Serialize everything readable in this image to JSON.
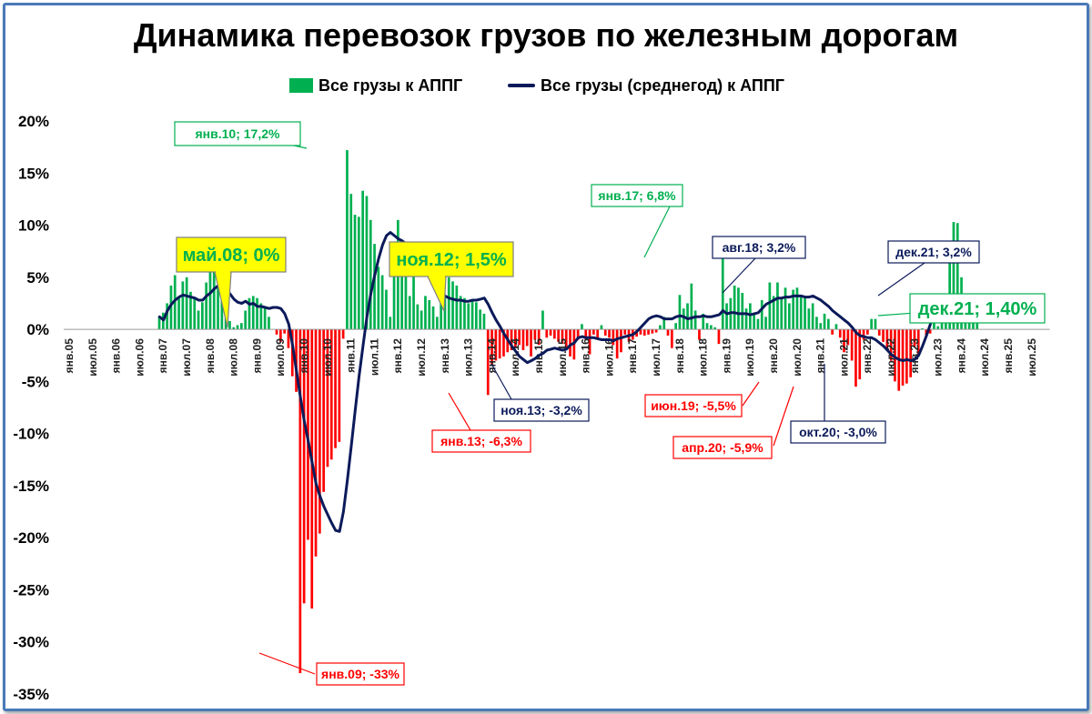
{
  "title": "Динамика перевозок грузов по железным дорогам",
  "legend": {
    "bars_label": "Все грузы к АППГ",
    "line_label": "Все грузы (среднегод) к АППГ"
  },
  "colors": {
    "positive_bar": "#00b050",
    "negative_bar": "#ff0000",
    "line": "#0b1a5a",
    "green_box_border": "#00b050",
    "green_box_text": "#00b050",
    "red_box_text": "#ff0000",
    "navy_box_text": "#0b1a5a",
    "yellow_fill": "#ffff00",
    "big_green_text": "#00b050"
  },
  "chart_data": {
    "type": "bar+line",
    "title": "Динамика перевозок грузов по железным дорогам",
    "ylim": [
      -35,
      20
    ],
    "y_ticks": [
      "20%",
      "15%",
      "10%",
      "5%",
      "0%",
      "-5%",
      "-10%",
      "-15%",
      "-20%",
      "-25%",
      "-30%",
      "-35%"
    ],
    "x_ticks": [
      "янв.05",
      "июл.05",
      "янв.06",
      "июл.06",
      "янв.07",
      "июл.07",
      "янв.08",
      "июл.08",
      "янв.09",
      "июл.09",
      "янв.10",
      "июл.10",
      "янв.11",
      "июл.11",
      "янв.12",
      "июл.12",
      "янв.13",
      "июл.13",
      "янв.14",
      "июл.14",
      "янв.15",
      "июл.15",
      "янв.16",
      "июл.16",
      "янв.17",
      "июл.17",
      "янв.18",
      "июл.18",
      "янв.19",
      "июл.19",
      "янв.20",
      "июл.20",
      "янв.21",
      "июл.21",
      "янв.22",
      "июл.22",
      "янв.23",
      "июл.23",
      "янв.24",
      "июл.24",
      "янв.25",
      "июл.25"
    ],
    "start_month": "янв.05",
    "series": [
      {
        "name": "Все грузы к АППГ",
        "kind": "bar",
        "values": [
          null,
          null,
          null,
          null,
          null,
          null,
          null,
          null,
          null,
          null,
          null,
          null,
          null,
          null,
          null,
          null,
          null,
          null,
          null,
          null,
          null,
          null,
          null,
          null,
          1.2,
          1.6,
          2.5,
          4.2,
          5.2,
          3.1,
          4.6,
          5.0,
          3.6,
          3.0,
          1.8,
          2.6,
          4.5,
          8.8,
          6.1,
          4.0,
          3.8,
          2.5,
          0.8,
          0.2,
          0.4,
          0.6,
          1.8,
          3.0,
          3.2,
          3.0,
          2.5,
          2.0,
          1.2,
          0.0,
          -0.5,
          -1.2,
          -0.4,
          -1.8,
          -4.5,
          -6.0,
          -33.0,
          -26.3,
          -20.2,
          -26.8,
          -21.8,
          -19.6,
          -15.6,
          -13.2,
          -12.5,
          -11.4,
          -10.8,
          -0.9,
          17.2,
          13.0,
          11.0,
          10.8,
          13.3,
          12.8,
          10.5,
          8.2,
          6.0,
          5.2,
          3.8,
          1.2,
          5.5,
          10.5,
          7.2,
          6.0,
          3.2,
          5.2,
          2.4,
          1.8,
          3.2,
          2.8,
          2.2,
          1.2,
          2.8,
          3.2,
          5.0,
          4.6,
          4.2,
          3.2,
          3.0,
          2.5,
          2.8,
          2.6,
          1.9,
          1.5,
          -6.3,
          -3.5,
          -3.0,
          -2.8,
          -2.6,
          -2.2,
          -2.0,
          -1.8,
          -1.5,
          -2.0,
          -1.6,
          -2.6,
          -1.0,
          -1.5,
          1.8,
          -0.8,
          -0.6,
          -0.9,
          -1.2,
          -1.4,
          -1.9,
          -2.6,
          -2.9,
          -1.0,
          0.5,
          -1.0,
          -2.4,
          -0.5,
          -0.8,
          0.4,
          -0.6,
          -0.8,
          -1.5,
          -2.8,
          -2.2,
          -0.5,
          -1.2,
          -1.0,
          -0.7,
          -0.5,
          -0.6,
          -0.5,
          -0.4,
          -0.3,
          0.4,
          1.2,
          -0.6,
          -1.8,
          0.6,
          3.3,
          2.0,
          2.5,
          4.4,
          1.8,
          -1.0,
          1.5,
          0.6,
          0.4,
          0.2,
          -1.4,
          6.8,
          2.5,
          3.0,
          4.2,
          4.0,
          3.5,
          2.0,
          2.5,
          1.5,
          1.0,
          2.8,
          1.2,
          4.5,
          3.2,
          4.5,
          3.0,
          4.0,
          2.5,
          3.8,
          4.0,
          3.2,
          3.0,
          2.0,
          2.5,
          1.2,
          0.6,
          1.5,
          1.0,
          -0.5,
          0.5,
          -0.8,
          -2.2,
          -1.5,
          -3.0,
          -5.5,
          -4.8,
          -1.0,
          -0.5,
          1.0,
          1.0,
          -0.6,
          -1.2,
          -1.8,
          -3.0,
          -5.0,
          -5.9,
          -5.4,
          -5.2,
          -4.6,
          -1.7,
          -2.5,
          0.1,
          -0.6,
          -0.4,
          0.8,
          0.3,
          0.8,
          2.2,
          7.0,
          10.3,
          10.2,
          5.0,
          3.0,
          2.0,
          0.6,
          1.4
        ]
      },
      {
        "name": "Все грузы (среднегод) к АППГ",
        "kind": "line",
        "values": [
          null,
          null,
          null,
          null,
          null,
          null,
          null,
          null,
          null,
          null,
          null,
          null,
          null,
          null,
          null,
          null,
          null,
          null,
          null,
          null,
          null,
          null,
          null,
          null,
          1.2,
          0.9,
          1.8,
          2.4,
          2.8,
          3.1,
          3.3,
          3.2,
          3.1,
          3.0,
          2.8,
          2.8,
          3.2,
          3.5,
          3.9,
          4.2,
          4.1,
          3.8,
          3.4,
          2.9,
          2.6,
          2.5,
          2.7,
          2.4,
          2.5,
          2.2,
          2.2,
          2.1,
          2.0,
          2.1,
          2.1,
          2.0,
          1.5,
          0.5,
          -1.5,
          -4.0,
          -6.5,
          -8.8,
          -10.7,
          -12.8,
          -14.8,
          -16.0,
          -17.0,
          -17.8,
          -18.6,
          -19.3,
          -19.4,
          -17.5,
          -14.5,
          -11.2,
          -7.8,
          -4.5,
          -1.6,
          1.2,
          3.4,
          5.2,
          6.8,
          8.1,
          9.0,
          9.3,
          9.0,
          8.7,
          8.5,
          8.2,
          7.8,
          7.2,
          6.6,
          6.0,
          5.6,
          5.0,
          4.5,
          4.0,
          3.6,
          3.2,
          3.0,
          2.9,
          2.8,
          2.8,
          2.7,
          2.7,
          2.8,
          2.8,
          2.9,
          3.0,
          2.4,
          1.6,
          0.9,
          0.3,
          -0.4,
          -1.0,
          -1.6,
          -2.1,
          -2.6,
          -2.9,
          -3.2,
          -3.0,
          -2.8,
          -2.5,
          -2.3,
          -2.0,
          -1.9,
          -1.8,
          -1.9,
          -2.0,
          -1.9,
          -1.5,
          -1.3,
          -0.8,
          -0.7,
          -0.8,
          -0.8,
          -0.8,
          -0.9,
          -1.0,
          -1.0,
          -1.0,
          -1.1,
          -0.9,
          -0.8,
          -0.7,
          -0.6,
          -0.5,
          -0.2,
          0.2,
          0.6,
          1.0,
          1.2,
          1.3,
          1.2,
          1.0,
          1.0,
          1.0,
          1.2,
          1.3,
          1.2,
          1.0,
          1.1,
          1.2,
          1.2,
          1.3,
          1.2,
          1.2,
          1.3,
          1.4,
          1.8,
          1.5,
          1.6,
          1.6,
          1.5,
          1.5,
          1.5,
          1.4,
          1.5,
          1.6,
          2.0,
          2.4,
          2.6,
          2.8,
          3.0,
          3.0,
          3.1,
          3.1,
          3.2,
          3.2,
          3.2,
          3.1,
          3.1,
          3.2,
          3.0,
          2.8,
          2.5,
          2.2,
          1.8,
          1.5,
          1.2,
          0.9,
          0.6,
          0.2,
          -0.3,
          -0.6,
          -0.7,
          -0.8,
          -0.8,
          -1.0,
          -1.3,
          -1.6,
          -2.0,
          -2.4,
          -2.7,
          -2.9,
          -3.0,
          -2.9,
          -3.0,
          -2.9,
          -2.5,
          -1.6,
          -0.6,
          0.5,
          1.5,
          2.3,
          2.6,
          2.7,
          2.8,
          3.1,
          3.2,
          3.2,
          3.2,
          3.2,
          3.2,
          3.2
        ]
      }
    ],
    "annotations": [
      {
        "text": "янв.10; 17,2%",
        "style": "green-box"
      },
      {
        "text": "май.08; 0%",
        "style": "yellow-green"
      },
      {
        "text": "ноя.12; 1,5%",
        "style": "yellow-green"
      },
      {
        "text": "янв.17; 6,8%",
        "style": "green-box"
      },
      {
        "text": "авг.18; 3,2%",
        "style": "navy-box"
      },
      {
        "text": "дек.21; 3,2%",
        "style": "navy-box"
      },
      {
        "text": "дек.21; 1,40%",
        "style": "big-green"
      },
      {
        "text": "ноя.13; -3,2%",
        "style": "navy-box"
      },
      {
        "text": "янв.13; -6,3%",
        "style": "red-box"
      },
      {
        "text": "июн.19; -5,5%",
        "style": "red-box"
      },
      {
        "text": "апр.20; -5,9%",
        "style": "red-box"
      },
      {
        "text": "окт.20; -3,0%",
        "style": "navy-box"
      },
      {
        "text": "янв.09; -33%",
        "style": "red-box"
      }
    ],
    "grid": false,
    "legend_position": "top"
  }
}
